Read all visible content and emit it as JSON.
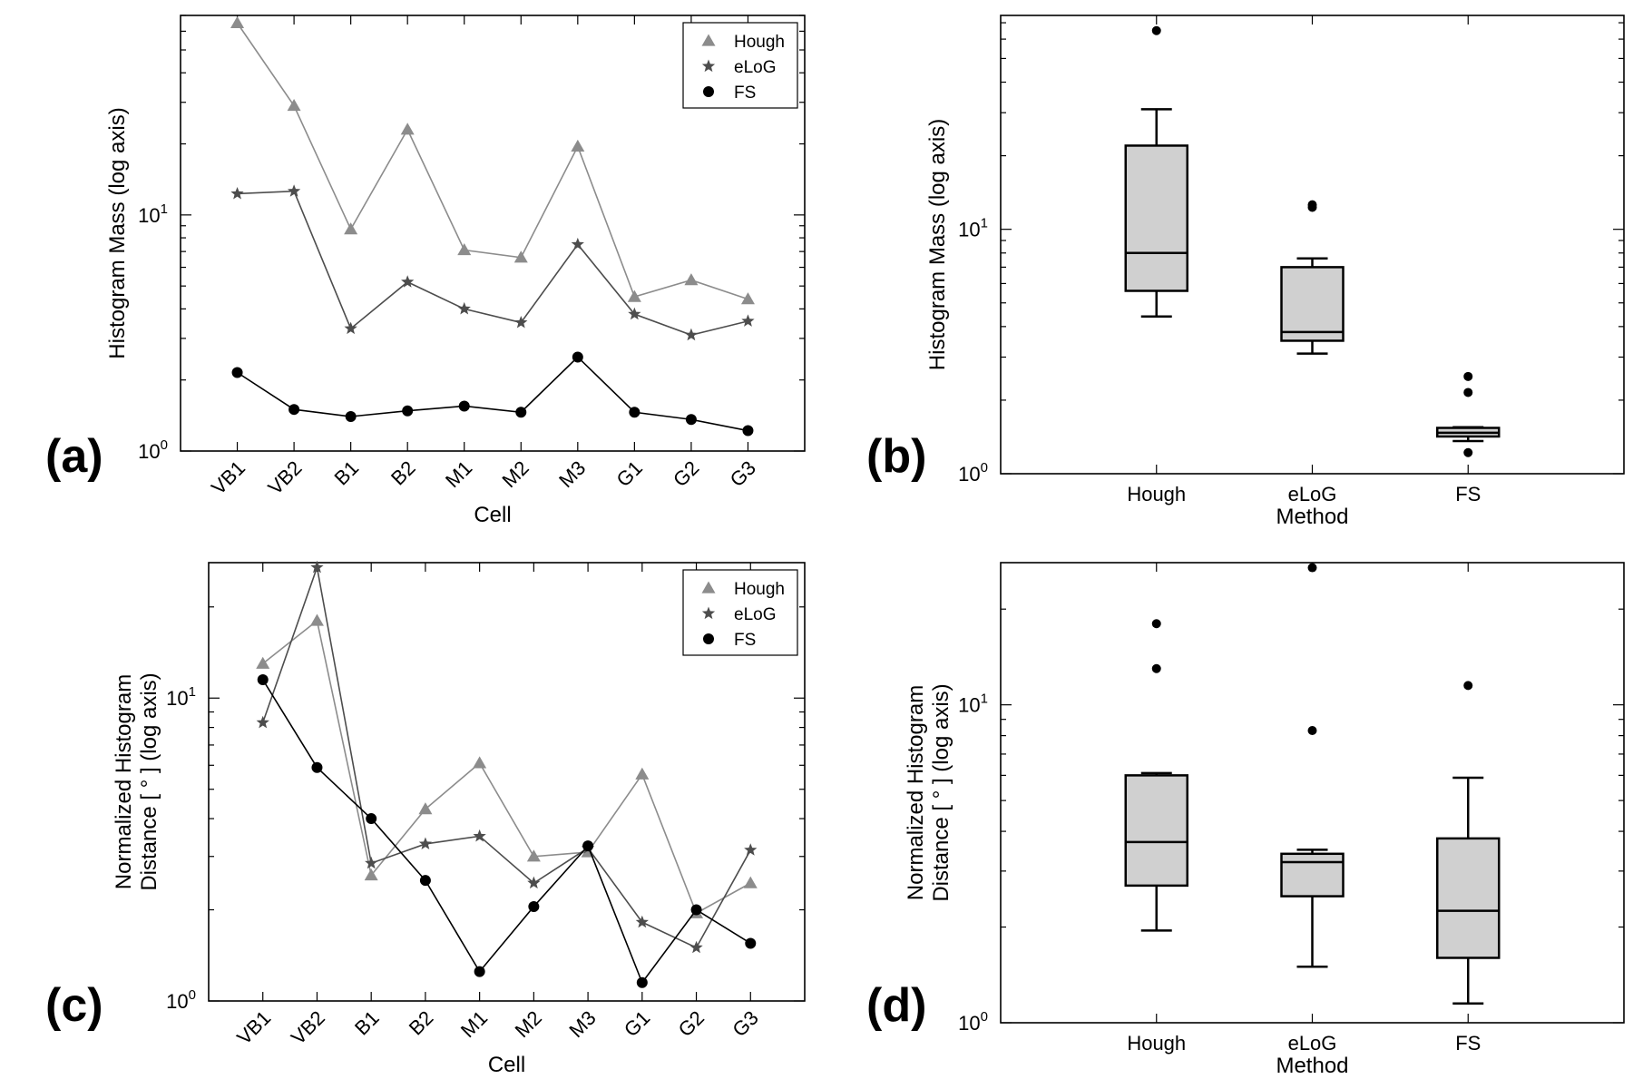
{
  "chart_data": [
    {
      "id": "a",
      "panel_label": "(a)",
      "type": "line",
      "scale_y": "log",
      "ylim": [
        1,
        70
      ],
      "xlabel": "Cell",
      "ylabel": "Histogram Mass (log axis)",
      "ytick_base": "10",
      "ytick_exps": [
        "0",
        "1"
      ],
      "categories": [
        "VB1",
        "VB2",
        "B1",
        "B2",
        "M1",
        "M2",
        "M3",
        "G1",
        "G2",
        "G3"
      ],
      "legend_position": "top-right",
      "series": [
        {
          "name": "Hough",
          "marker": "triangle",
          "color": "#8c8c8c",
          "values": [
            65,
            29,
            8.7,
            23,
            7.1,
            6.6,
            19.5,
            4.5,
            5.3,
            4.4
          ]
        },
        {
          "name": "eLoG",
          "marker": "star",
          "color": "#4d4d4d",
          "values": [
            12.3,
            12.6,
            3.3,
            5.2,
            4.0,
            3.5,
            7.5,
            3.8,
            3.1,
            3.55
          ]
        },
        {
          "name": "FS",
          "marker": "circle",
          "color": "#000000",
          "values": [
            2.15,
            1.5,
            1.4,
            1.48,
            1.55,
            1.46,
            2.5,
            1.46,
            1.36,
            1.22
          ]
        }
      ]
    },
    {
      "id": "b",
      "panel_label": "(b)",
      "type": "box",
      "scale_y": "log",
      "ylim": [
        1,
        75
      ],
      "xlabel": "Method",
      "ylabel": "Histogram Mass (log axis)",
      "ytick_base": "10",
      "ytick_exps": [
        "0",
        "1"
      ],
      "categories": [
        "Hough",
        "eLoG",
        "FS"
      ],
      "boxes": [
        {
          "name": "Hough",
          "whisker_low": 4.4,
          "q1": 5.6,
          "median": 8.0,
          "q3": 22.0,
          "whisker_high": 31.0,
          "outliers": [
            65
          ]
        },
        {
          "name": "eLoG",
          "whisker_low": 3.1,
          "q1": 3.5,
          "median": 3.8,
          "q3": 7.0,
          "whisker_high": 7.6,
          "outliers": [
            12.3,
            12.6
          ]
        },
        {
          "name": "FS",
          "whisker_low": 1.36,
          "q1": 1.42,
          "median": 1.47,
          "q3": 1.54,
          "whisker_high": 1.55,
          "outliers": [
            2.15,
            2.5,
            1.22
          ]
        }
      ]
    },
    {
      "id": "c",
      "panel_label": "(c)",
      "type": "line",
      "scale_y": "log",
      "ylim": [
        1,
        28
      ],
      "xlabel": "Cell",
      "ylabel": "Normalized Histogram Distance [°] (log axis)",
      "ylabel_lines": [
        "Normalized Histogram",
        "Distance [ ° ] (log axis)"
      ],
      "ytick_base": "10",
      "ytick_exps": [
        "0",
        "1"
      ],
      "categories": [
        "VB1",
        "VB2",
        "B1",
        "B2",
        "M1",
        "M2",
        "M3",
        "G1",
        "G2",
        "G3"
      ],
      "legend_position": "top-right",
      "series": [
        {
          "name": "Hough",
          "marker": "triangle",
          "color": "#8c8c8c",
          "values": [
            13.0,
            18.0,
            2.6,
            4.3,
            6.1,
            3.0,
            3.1,
            5.6,
            1.95,
            2.45
          ]
        },
        {
          "name": "eLoG",
          "marker": "star",
          "color": "#4d4d4d",
          "values": [
            8.3,
            27.0,
            2.85,
            3.3,
            3.5,
            2.45,
            3.2,
            1.82,
            1.5,
            3.15
          ]
        },
        {
          "name": "FS",
          "marker": "circle",
          "color": "#000000",
          "values": [
            11.5,
            5.9,
            4.0,
            2.5,
            1.25,
            2.05,
            3.25,
            1.15,
            2.0,
            1.55
          ]
        }
      ]
    },
    {
      "id": "d",
      "panel_label": "(d)",
      "type": "box",
      "scale_y": "log",
      "ylim": [
        1,
        28
      ],
      "xlabel": "Method",
      "ylabel": "Normalized Histogram Distance [°] (log axis)",
      "ylabel_lines": [
        "Normalized Histogram",
        "Distance [ ° ] (log axis)"
      ],
      "ytick_base": "10",
      "ytick_exps": [
        "0",
        "1"
      ],
      "categories": [
        "Hough",
        "eLoG",
        "FS"
      ],
      "boxes": [
        {
          "name": "Hough",
          "whisker_low": 1.95,
          "q1": 2.7,
          "median": 3.7,
          "q3": 6.0,
          "whisker_high": 6.1,
          "outliers": [
            13.0,
            18.0
          ]
        },
        {
          "name": "eLoG",
          "whisker_low": 1.5,
          "q1": 2.5,
          "median": 3.2,
          "q3": 3.4,
          "whisker_high": 3.5,
          "outliers": [
            8.3,
            27.0
          ]
        },
        {
          "name": "FS",
          "whisker_low": 1.15,
          "q1": 1.6,
          "median": 2.25,
          "q3": 3.8,
          "whisker_high": 5.9,
          "outliers": [
            11.5
          ]
        }
      ]
    }
  ]
}
